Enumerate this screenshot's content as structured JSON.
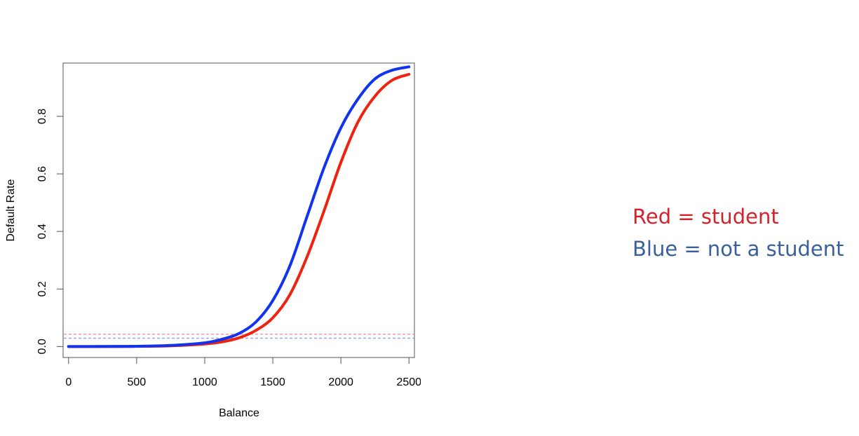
{
  "chart_data": {
    "type": "line",
    "title": "",
    "xlabel": "Balance",
    "ylabel": "Default Rate",
    "xlim": [
      -40,
      2540
    ],
    "ylim": [
      -0.038,
      0.985
    ],
    "x_ticks": [
      0,
      500,
      1000,
      1500,
      2000,
      2500
    ],
    "x_tick_labels": [
      "0",
      "500",
      "1000",
      "1500",
      "2000",
      "2500"
    ],
    "y_ticks": [
      0.0,
      0.2,
      0.4,
      0.6,
      0.8
    ],
    "y_tick_labels": [
      "0.0",
      "0.2",
      "0.4",
      "0.6",
      "0.8"
    ],
    "grid": false,
    "series": [
      {
        "name": "Red = student",
        "color": "#ee2211",
        "x": [
          0,
          250,
          500,
          750,
          1000,
          1125,
          1250,
          1375,
          1500,
          1625,
          1750,
          1875,
          2000,
          2125,
          2250,
          2375,
          2500
        ],
        "y": [
          0.0,
          0.0002,
          0.0006,
          0.0025,
          0.009,
          0.016,
          0.03,
          0.056,
          0.1,
          0.18,
          0.31,
          0.47,
          0.64,
          0.78,
          0.87,
          0.925,
          0.946
        ]
      },
      {
        "name": "Blue = not a student",
        "color": "#1133ee",
        "x": [
          0,
          250,
          500,
          750,
          1000,
          1125,
          1250,
          1375,
          1500,
          1625,
          1750,
          1875,
          2000,
          2125,
          2250,
          2375,
          2500
        ],
        "y": [
          0.0,
          0.0003,
          0.001,
          0.004,
          0.013,
          0.025,
          0.045,
          0.085,
          0.16,
          0.28,
          0.45,
          0.62,
          0.76,
          0.86,
          0.93,
          0.96,
          0.972
        ]
      }
    ],
    "reference_lines": [
      {
        "y": 0.043,
        "color": "#f29aa6",
        "style": "dashed"
      },
      {
        "y": 0.029,
        "color": "#9aa6f2",
        "style": "dashed"
      }
    ]
  },
  "legend": {
    "student_label": "Red = student",
    "student_color": "#d2222e",
    "nonstudent_label": "Blue = not a student",
    "nonstudent_color": "#3a5f9a"
  }
}
